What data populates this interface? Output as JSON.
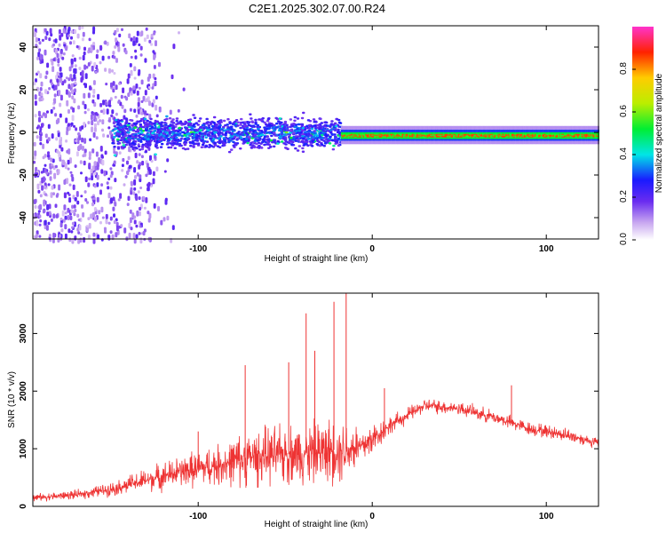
{
  "chart_data": [
    {
      "type": "heatmap",
      "title": "C2E1.2025.302.07.00.R24",
      "xlabel": "Height of straight line (km)",
      "ylabel": "Frequency (Hz)",
      "xlim": [
        -195,
        130
      ],
      "ylim": [
        -50,
        50
      ],
      "xticks": [
        -100,
        0,
        100
      ],
      "yticks": [
        40,
        20,
        0,
        -20,
        -40
      ],
      "colorbar": {
        "label": "Normalized spectral amplitude",
        "range": [
          0,
          1
        ],
        "ticks": [
          "0.0",
          "0.2",
          "0.4",
          "0.6",
          "0.8"
        ],
        "tick_values": [
          0.0,
          0.2,
          0.4,
          0.6,
          0.8
        ]
      },
      "description_regions": [
        {
          "x_from": -195,
          "x_to": -130,
          "freq_spread": 50,
          "amplitude": 0.1
        },
        {
          "x_from": -150,
          "x_to": -18,
          "freq_center": 0,
          "freq_spread": 6,
          "amplitude": 0.35
        },
        {
          "x_from": -18,
          "x_to": 130,
          "freq_center": -1,
          "freq_spread": 2,
          "amplitude": 0.95
        }
      ]
    },
    {
      "type": "line",
      "title": "",
      "xlabel": "Height of straight line (km)",
      "ylabel": "SNR (10 * v/v)",
      "xlim": [
        -195,
        130
      ],
      "ylim": [
        0,
        3700
      ],
      "xticks": [
        -100,
        0,
        100
      ],
      "yticks": [
        0,
        1000,
        2000,
        3000
      ],
      "series": [
        {
          "name": "SNR",
          "color": "#ee3333",
          "envelope_x": [
            -195,
            -170,
            -150,
            -130,
            -110,
            -90,
            -70,
            -50,
            -30,
            -15,
            -5,
            10,
            30,
            50,
            70,
            90,
            110,
            130
          ],
          "envelope_y": [
            150,
            200,
            300,
            450,
            600,
            700,
            850,
            900,
            950,
            1000,
            1050,
            1400,
            1750,
            1700,
            1550,
            1350,
            1250,
            1100
          ],
          "noise_amplitude": [
            80,
            100,
            150,
            250,
            350,
            450,
            600,
            650,
            700,
            700,
            450,
            200,
            150,
            150,
            150,
            150,
            150,
            120
          ],
          "peaks": [
            {
              "x": -100,
              "y": 1300
            },
            {
              "x": -73,
              "y": 2450
            },
            {
              "x": -48,
              "y": 2500
            },
            {
              "x": -38,
              "y": 3350
            },
            {
              "x": -33,
              "y": 2700
            },
            {
              "x": -22,
              "y": 3550
            },
            {
              "x": -15,
              "y": 3700
            },
            {
              "x": 7,
              "y": 2050
            },
            {
              "x": 80,
              "y": 2100
            }
          ]
        }
      ]
    }
  ]
}
